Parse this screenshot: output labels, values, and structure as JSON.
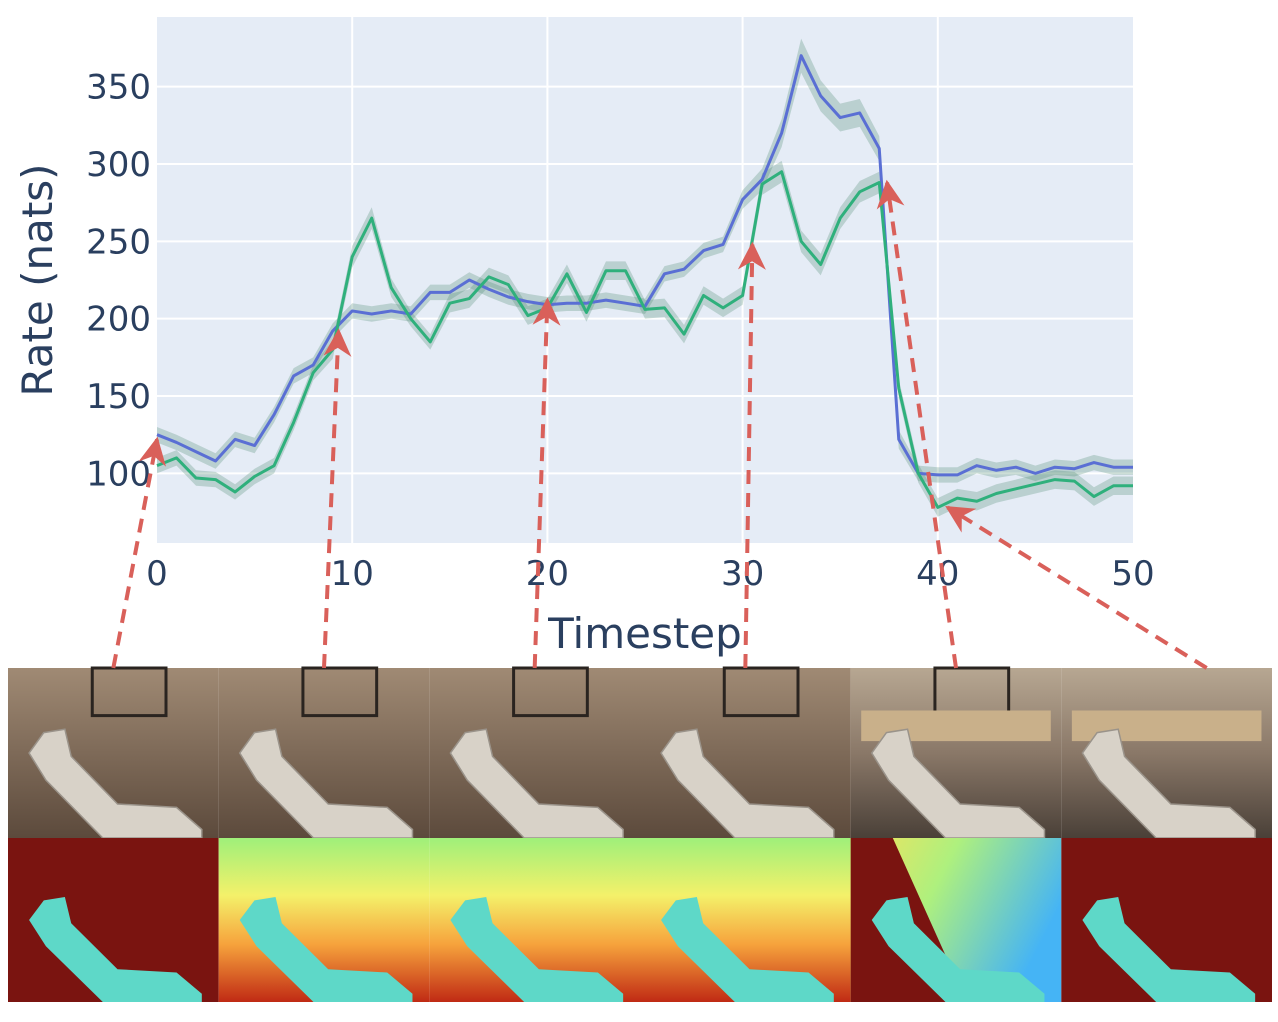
{
  "chart_data": {
    "type": "line",
    "title": "",
    "xlabel": "Timestep",
    "ylabel": "Rate (nats)",
    "xlim": [
      0,
      50
    ],
    "ylim": [
      55,
      395
    ],
    "x_ticks": [
      0,
      10,
      20,
      30,
      40,
      50
    ],
    "y_ticks": [
      100,
      150,
      200,
      250,
      300,
      350
    ],
    "grid": true,
    "legend": "none",
    "plot_bg": "#e5ecf6",
    "grid_color": "#ffffff",
    "band_color": "#4a8a70",
    "series": [
      {
        "color": "#5a6fd4",
        "x": [
          0,
          1,
          2,
          3,
          4,
          5,
          6,
          7,
          8,
          9,
          10,
          11,
          12,
          13,
          14,
          15,
          16,
          17,
          18,
          19,
          20,
          21,
          22,
          23,
          24,
          25,
          26,
          27,
          28,
          29,
          30,
          31,
          32,
          33,
          34,
          35,
          36,
          37,
          38,
          39,
          40,
          41,
          42,
          43,
          44,
          45,
          46,
          47,
          48,
          49,
          50
        ],
        "y": [
          125,
          120,
          114,
          108,
          122,
          118,
          138,
          163,
          170,
          192,
          205,
          203,
          205,
          203,
          217,
          217,
          225,
          219,
          214,
          211,
          209,
          210,
          210,
          212,
          210,
          208,
          229,
          232,
          244,
          248,
          277,
          290,
          320,
          370,
          344,
          330,
          333,
          310,
          122,
          100,
          99,
          99,
          105,
          102,
          104,
          100,
          104,
          103,
          107,
          104,
          104
        ],
        "band": [
          5,
          5,
          5,
          5,
          5,
          5,
          5,
          5,
          5,
          5,
          5,
          5,
          5,
          5,
          5,
          5,
          5,
          5,
          5,
          5,
          5,
          5,
          5,
          5,
          5,
          5,
          5,
          5,
          5,
          5,
          6,
          7,
          9,
          11,
          10,
          9,
          9,
          8,
          6,
          5,
          5,
          5,
          5,
          5,
          5,
          5,
          5,
          5,
          5,
          5,
          5
        ]
      },
      {
        "color": "#2fb07c",
        "x": [
          0,
          1,
          2,
          3,
          4,
          5,
          6,
          7,
          8,
          9,
          10,
          11,
          12,
          13,
          14,
          15,
          16,
          17,
          18,
          19,
          20,
          21,
          22,
          23,
          24,
          25,
          26,
          27,
          28,
          29,
          30,
          31,
          32,
          33,
          34,
          35,
          36,
          37,
          38,
          39,
          40,
          41,
          42,
          43,
          44,
          45,
          46,
          47,
          48,
          49,
          50
        ],
        "y": [
          105,
          110,
          97,
          96,
          88,
          98,
          105,
          133,
          165,
          180,
          240,
          265,
          220,
          200,
          185,
          210,
          213,
          227,
          222,
          202,
          207,
          229,
          204,
          231,
          231,
          206,
          207,
          190,
          215,
          207,
          215,
          287,
          295,
          250,
          235,
          265,
          282,
          288,
          155,
          100,
          78,
          84,
          82,
          87,
          90,
          93,
          96,
          95,
          85,
          92,
          92
        ],
        "band": [
          5,
          5,
          5,
          5,
          5,
          5,
          5,
          5,
          5,
          6,
          7,
          7,
          6,
          5,
          5,
          6,
          6,
          6,
          6,
          6,
          6,
          6,
          6,
          6,
          6,
          6,
          6,
          6,
          6,
          6,
          6,
          7,
          7,
          7,
          7,
          7,
          7,
          7,
          6,
          6,
          6,
          6,
          6,
          6,
          6,
          6,
          6,
          6,
          6,
          6,
          6
        ]
      }
    ],
    "arrows": [
      {
        "from_frame": 0,
        "to_x": 0,
        "to_y": 122
      },
      {
        "from_frame": 1,
        "to_x": 9.3,
        "to_y": 192
      },
      {
        "from_frame": 2,
        "to_x": 20,
        "to_y": 212
      },
      {
        "from_frame": 3,
        "to_x": 30.5,
        "to_y": 248
      },
      {
        "from_frame": 4,
        "to_x": 37.4,
        "to_y": 288
      },
      {
        "from_frame": 5,
        "to_x": 40.5,
        "to_y": 78
      }
    ],
    "arrow_color": "#d9605a"
  },
  "image_strip": {
    "frames": [
      {
        "scene": "robot-arm-hallway-door",
        "depth": "arm-on-red-background"
      },
      {
        "scene": "robot-arm-perforated-wall",
        "depth": "gradient-yellow-red"
      },
      {
        "scene": "robot-arm-perforated-wall",
        "depth": "gradient-yellow-red"
      },
      {
        "scene": "robot-arm-perforated-wall",
        "depth": "gradient-yellow-red"
      },
      {
        "scene": "robot-arm-conference-room-edge",
        "depth": "diagonal-blue-gradient"
      },
      {
        "scene": "robot-arm-conference-room",
        "depth": "arm-on-red-background"
      }
    ],
    "photo_bg": "#8a7562",
    "depth_far": "#7a1410",
    "arm_color": "#5ed8c8"
  }
}
